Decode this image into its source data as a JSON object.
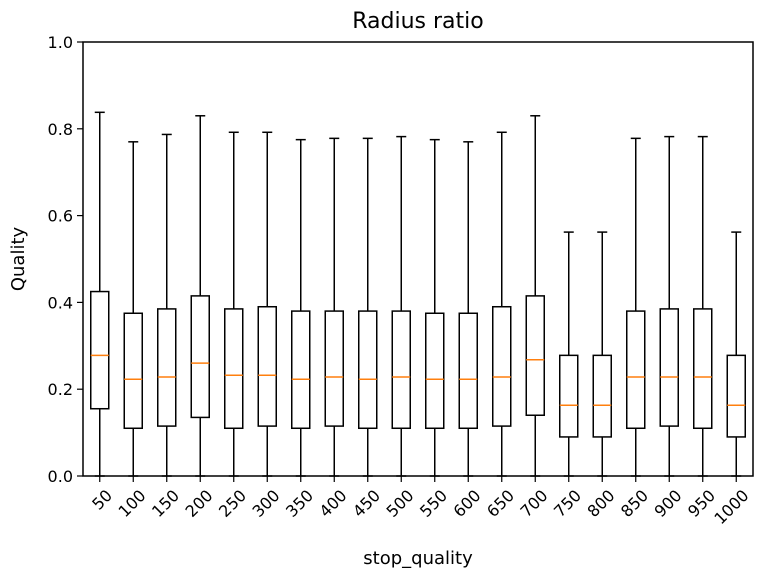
{
  "chart_data": {
    "type": "box",
    "title": "Radius ratio",
    "xlabel": "stop_quality",
    "ylabel": "Quality",
    "ylim": [
      0.0,
      1.0
    ],
    "yticks": [
      "0.0",
      "0.2",
      "0.4",
      "0.6",
      "0.8",
      "1.0"
    ],
    "grid": false,
    "colors": {
      "box": "#000000",
      "median": "#ff7f0e"
    },
    "categories": [
      "50",
      "100",
      "150",
      "200",
      "250",
      "300",
      "350",
      "400",
      "450",
      "500",
      "550",
      "600",
      "650",
      "700",
      "750",
      "800",
      "850",
      "900",
      "950",
      "1000"
    ],
    "boxes": [
      {
        "whisker_low": 0.0,
        "q1": 0.155,
        "median": 0.278,
        "q3": 0.425,
        "whisker_high": 0.838
      },
      {
        "whisker_low": 0.0,
        "q1": 0.11,
        "median": 0.223,
        "q3": 0.375,
        "whisker_high": 0.77
      },
      {
        "whisker_low": 0.0,
        "q1": 0.115,
        "median": 0.228,
        "q3": 0.385,
        "whisker_high": 0.787
      },
      {
        "whisker_low": 0.0,
        "q1": 0.135,
        "median": 0.26,
        "q3": 0.415,
        "whisker_high": 0.83
      },
      {
        "whisker_low": 0.0,
        "q1": 0.11,
        "median": 0.232,
        "q3": 0.385,
        "whisker_high": 0.792
      },
      {
        "whisker_low": 0.0,
        "q1": 0.115,
        "median": 0.232,
        "q3": 0.39,
        "whisker_high": 0.792
      },
      {
        "whisker_low": 0.0,
        "q1": 0.11,
        "median": 0.223,
        "q3": 0.38,
        "whisker_high": 0.775
      },
      {
        "whisker_low": 0.0,
        "q1": 0.115,
        "median": 0.228,
        "q3": 0.38,
        "whisker_high": 0.778
      },
      {
        "whisker_low": 0.0,
        "q1": 0.11,
        "median": 0.223,
        "q3": 0.38,
        "whisker_high": 0.778
      },
      {
        "whisker_low": 0.0,
        "q1": 0.11,
        "median": 0.228,
        "q3": 0.38,
        "whisker_high": 0.782
      },
      {
        "whisker_low": 0.0,
        "q1": 0.11,
        "median": 0.223,
        "q3": 0.375,
        "whisker_high": 0.775
      },
      {
        "whisker_low": 0.0,
        "q1": 0.11,
        "median": 0.223,
        "q3": 0.375,
        "whisker_high": 0.77
      },
      {
        "whisker_low": 0.0,
        "q1": 0.115,
        "median": 0.228,
        "q3": 0.39,
        "whisker_high": 0.792
      },
      {
        "whisker_low": 0.0,
        "q1": 0.14,
        "median": 0.268,
        "q3": 0.415,
        "whisker_high": 0.83
      },
      {
        "whisker_low": 0.0,
        "q1": 0.09,
        "median": 0.163,
        "q3": 0.278,
        "whisker_high": 0.562
      },
      {
        "whisker_low": 0.0,
        "q1": 0.09,
        "median": 0.163,
        "q3": 0.278,
        "whisker_high": 0.562
      },
      {
        "whisker_low": 0.0,
        "q1": 0.11,
        "median": 0.228,
        "q3": 0.38,
        "whisker_high": 0.778
      },
      {
        "whisker_low": 0.0,
        "q1": 0.115,
        "median": 0.228,
        "q3": 0.385,
        "whisker_high": 0.782
      },
      {
        "whisker_low": 0.0,
        "q1": 0.11,
        "median": 0.228,
        "q3": 0.385,
        "whisker_high": 0.782
      },
      {
        "whisker_low": 0.0,
        "q1": 0.09,
        "median": 0.163,
        "q3": 0.278,
        "whisker_high": 0.562
      }
    ]
  }
}
